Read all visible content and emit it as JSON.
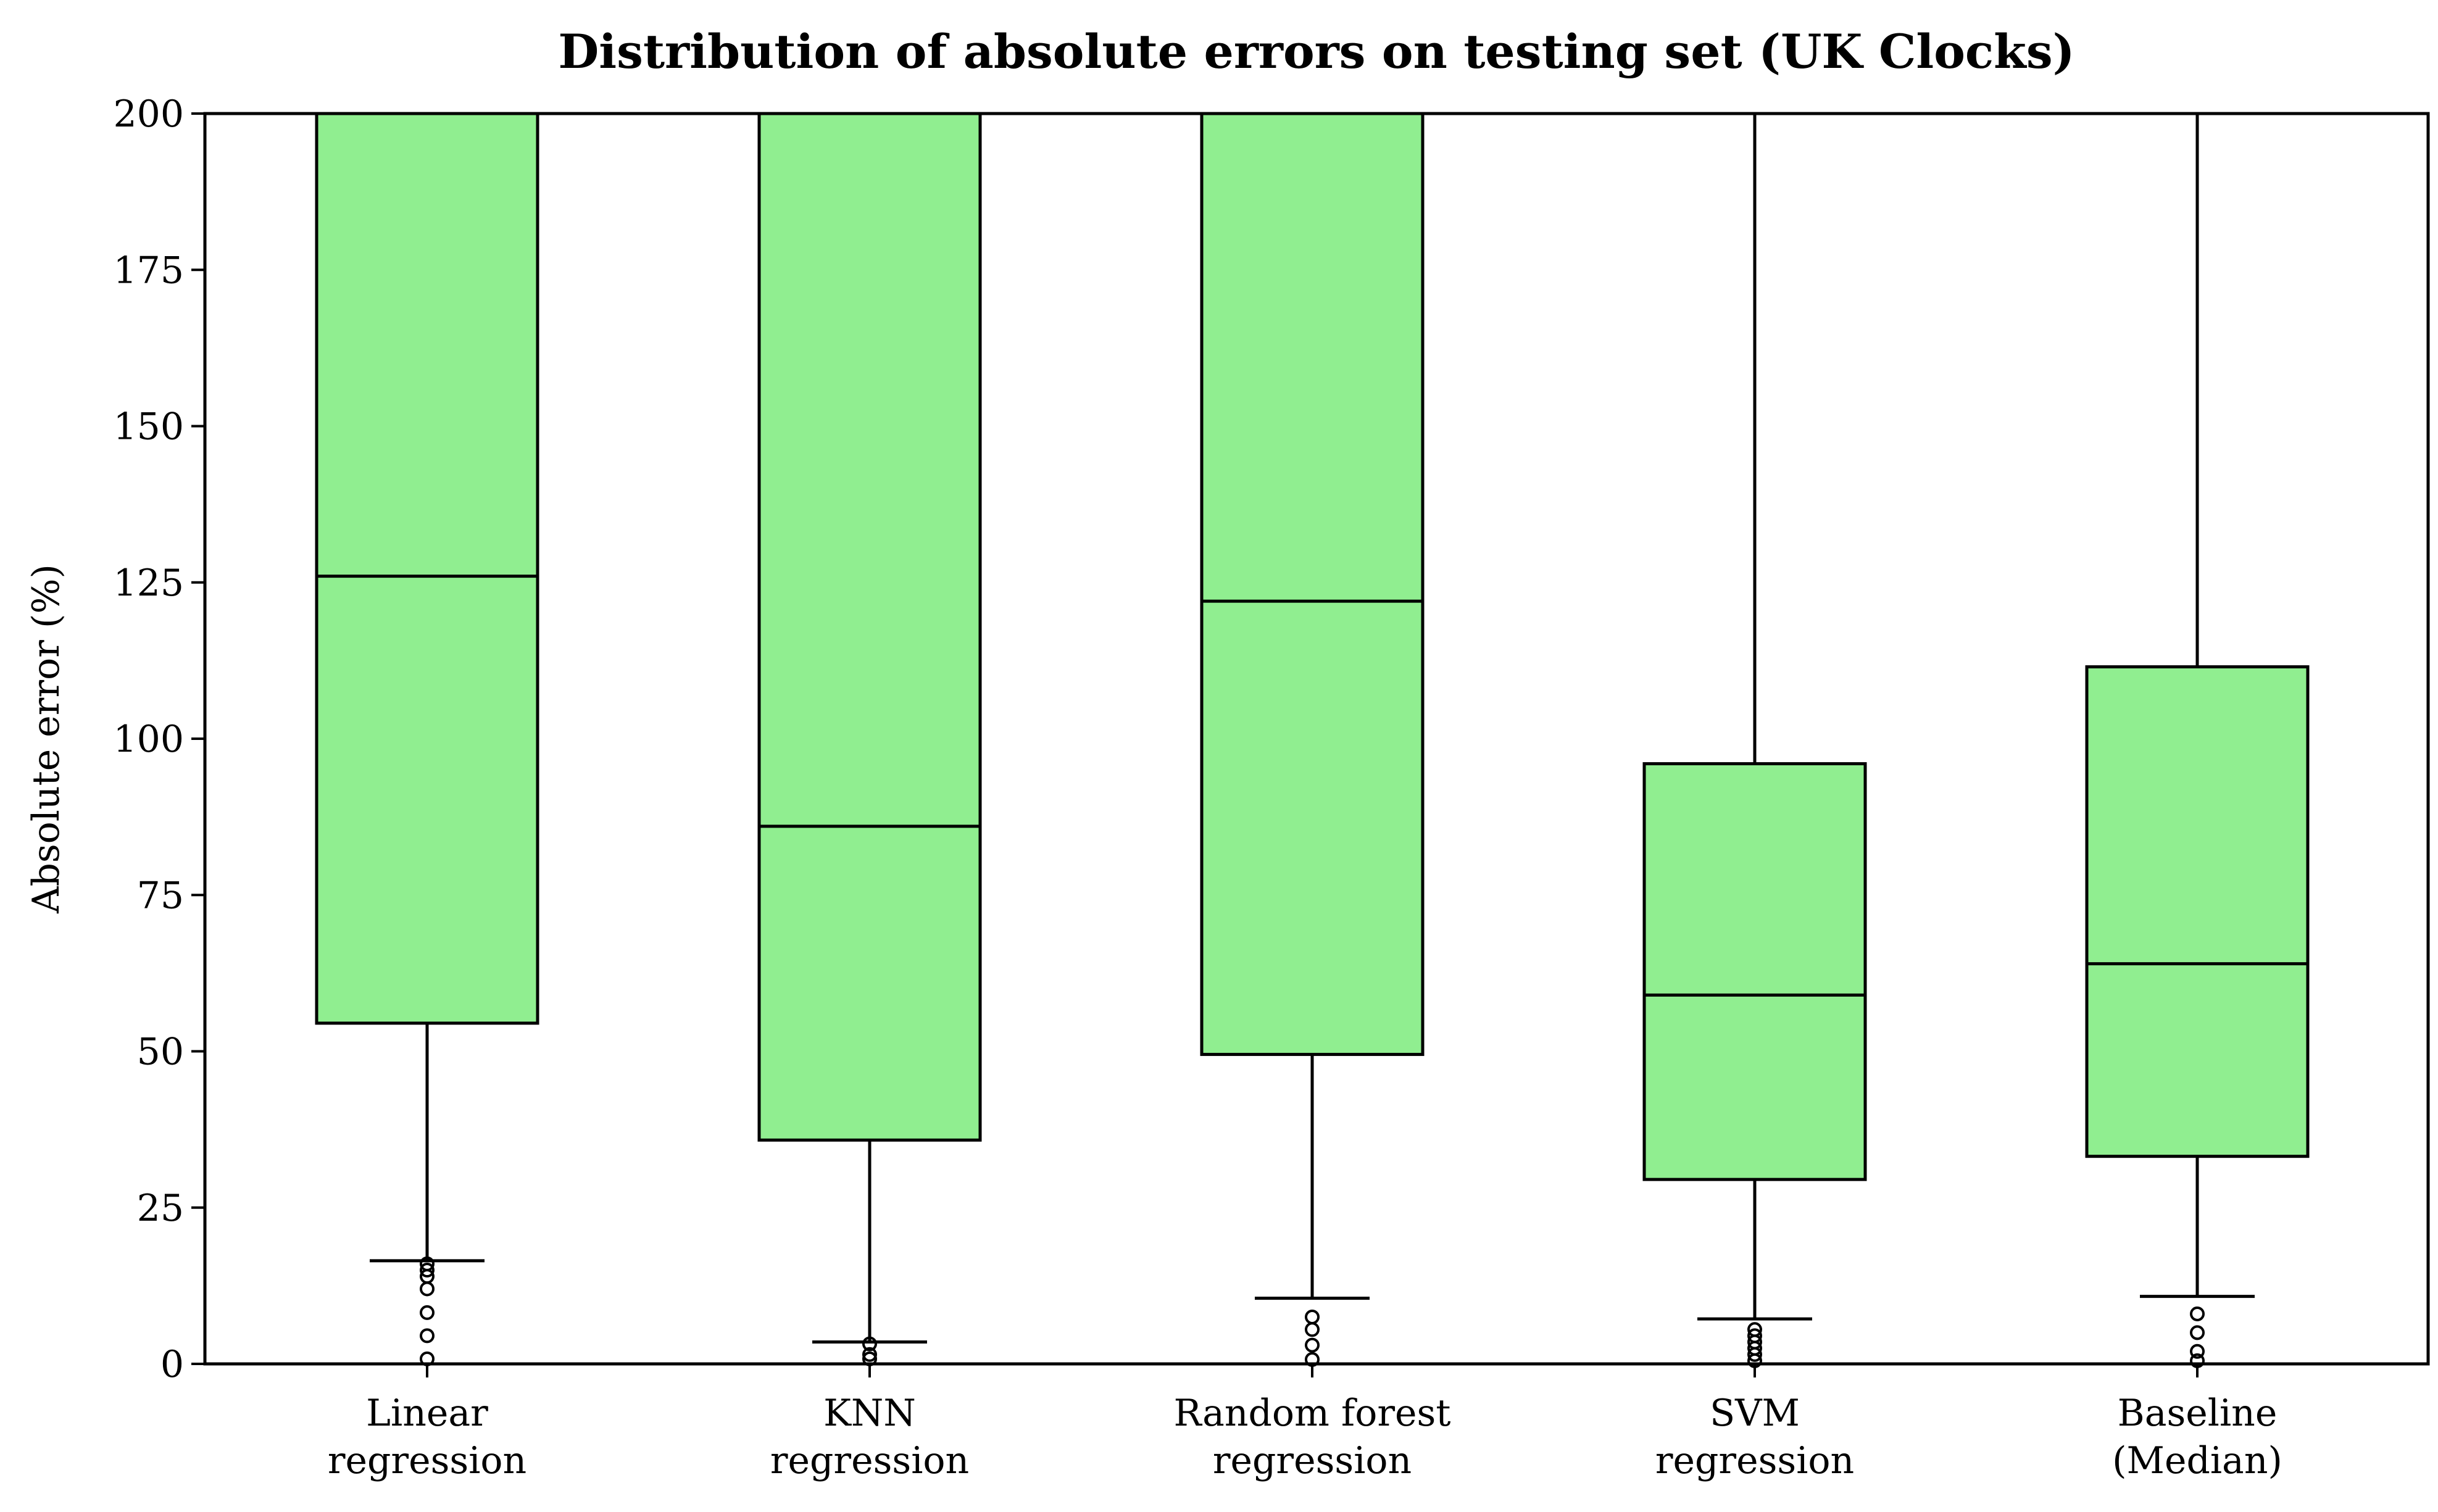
{
  "chart_data": {
    "type": "box",
    "title": "Distribution of absolute errors on testing set (UK Clocks)",
    "xlabel": "",
    "ylabel": "Absolute error (%)",
    "ylim": [
      0,
      200
    ],
    "yticks": [
      0,
      25,
      50,
      75,
      100,
      125,
      150,
      175,
      200
    ],
    "grid": false,
    "box_color": "#90EE90",
    "categories": [
      [
        "Linear",
        "regression"
      ],
      [
        "KNN",
        "regression"
      ],
      [
        "Random forest",
        "regression"
      ],
      [
        "SVM",
        "regression"
      ],
      [
        "Baseline",
        "(Median)"
      ]
    ],
    "boxes": [
      {
        "q1": 54.5,
        "median": 126,
        "q3": 200,
        "whisker_low": 16.5,
        "whisker_high": 200,
        "outliers": [
          0.8,
          4.5,
          8.2,
          12,
          14,
          15,
          16
        ]
      },
      {
        "q1": 35.8,
        "median": 86,
        "q3": 200,
        "whisker_low": 3.5,
        "whisker_high": 200,
        "outliers": [
          0.8,
          1.5,
          3.2
        ]
      },
      {
        "q1": 49.5,
        "median": 122,
        "q3": 200,
        "whisker_low": 10.5,
        "whisker_high": 200,
        "outliers": [
          0.7,
          3,
          5.5,
          7.5
        ]
      },
      {
        "q1": 29.5,
        "median": 59,
        "q3": 96,
        "whisker_low": 7.2,
        "whisker_high": 200,
        "outliers": [
          0.5,
          1.5,
          2.5,
          3.5,
          4.5,
          5.5
        ]
      },
      {
        "q1": 33.2,
        "median": 64,
        "q3": 111.5,
        "whisker_low": 10.8,
        "whisker_high": 200,
        "outliers": [
          0.5,
          2,
          5,
          8
        ]
      }
    ]
  }
}
